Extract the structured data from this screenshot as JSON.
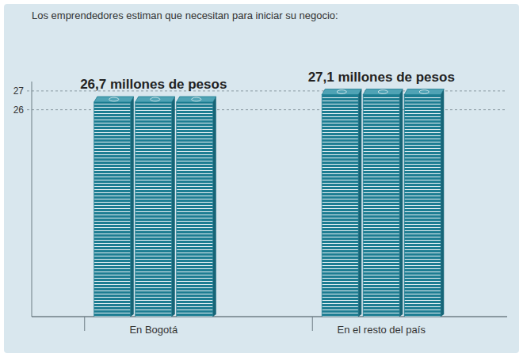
{
  "chart_data": {
    "type": "bar",
    "title": "Los emprendedores estiman que necesitan para iniciar su negocio:",
    "categories": [
      "En Bogotá",
      "En el resto del país"
    ],
    "values": [
      26.7,
      27.1
    ],
    "value_labels": [
      "26,7 millones de pesos",
      "27,1 millones de pesos"
    ],
    "data_labels": true,
    "color": "#1d7d92",
    "ylim": [
      15,
      27.5
    ],
    "yticks": [
      26,
      27
    ],
    "grid": true
  }
}
